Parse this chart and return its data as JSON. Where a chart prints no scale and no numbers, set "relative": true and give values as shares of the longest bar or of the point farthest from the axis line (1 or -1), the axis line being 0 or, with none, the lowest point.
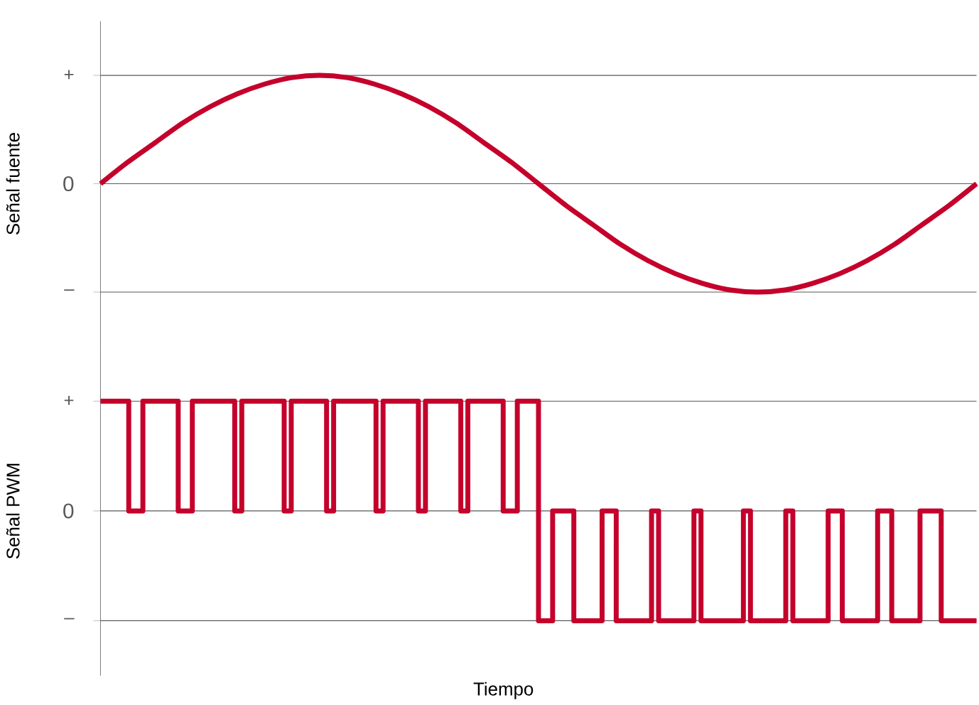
{
  "chart_data": [
    {
      "type": "line",
      "ylabel": "Señal fuente",
      "color": "#c4002b",
      "grid": "y",
      "relative": true,
      "annotations": [
        "+",
        "0",
        "–"
      ],
      "categories": [
        null,
        null,
        null,
        null,
        null,
        null,
        null,
        null,
        null,
        null,
        null,
        null,
        null,
        null,
        null,
        null,
        null,
        null,
        null,
        null,
        null,
        null,
        null,
        null,
        null,
        null,
        null,
        null,
        null,
        null,
        null,
        null,
        null
      ],
      "values": [
        0,
        0.2,
        0.38,
        0.56,
        0.71,
        0.83,
        0.92,
        0.98,
        1,
        0.98,
        0.92,
        0.83,
        0.71,
        0.56,
        0.38,
        0.2,
        0,
        -0.2,
        -0.38,
        -0.56,
        -0.71,
        -0.83,
        -0.92,
        -0.98,
        -1,
        -0.98,
        -0.92,
        -0.83,
        -0.71,
        -0.56,
        -0.38,
        -0.2,
        0
      ]
    },
    {
      "type": "step",
      "ylabel": "Señal PWM",
      "xlabel": "Tiempo",
      "color": "#c4002b",
      "grid": "y",
      "relative": true,
      "annotations": [
        "+",
        "0",
        "–"
      ],
      "categories": [
        null,
        null,
        null,
        null,
        null,
        null,
        null,
        null,
        null,
        null,
        null,
        null,
        null,
        null,
        null,
        null,
        null,
        null,
        null,
        null,
        null,
        null,
        null,
        null,
        null,
        null,
        null,
        null,
        null,
        null,
        null,
        null,
        null,
        null,
        null,
        null,
        null,
        null,
        null,
        null,
        null,
        null,
        null,
        null,
        null,
        null,
        null,
        null,
        null,
        null,
        null,
        null,
        null,
        null,
        null,
        null,
        null,
        null,
        null,
        null,
        null,
        null,
        null,
        null,
        null,
        null,
        null,
        null,
        null,
        null,
        null,
        null,
        null,
        null,
        null,
        null,
        null,
        null,
        null,
        null,
        null,
        null,
        null,
        null,
        null,
        null,
        null,
        null,
        null,
        null,
        null,
        null,
        null,
        null,
        null,
        null,
        null,
        null,
        null,
        null,
        null,
        null,
        null,
        null,
        null,
        null,
        null,
        null,
        null,
        null,
        null,
        null,
        null,
        null,
        null,
        null,
        null,
        null,
        null,
        null,
        null,
        null,
        null,
        null,
        null
      ],
      "values": [
        1,
        1,
        1,
        1,
        0,
        0,
        1,
        1,
        1,
        1,
        1,
        0,
        0,
        1,
        1,
        1,
        1,
        1,
        1,
        0,
        1,
        1,
        1,
        1,
        1,
        1,
        0,
        1,
        1,
        1,
        1,
        1,
        0,
        1,
        1,
        1,
        1,
        1,
        1,
        0,
        1,
        1,
        1,
        1,
        1,
        0,
        1,
        1,
        1,
        1,
        1,
        0,
        1,
        1,
        1,
        1,
        1,
        0,
        0,
        1,
        1,
        1,
        -1,
        -1,
        0,
        0,
        0,
        -1,
        -1,
        -1,
        -1,
        0,
        0,
        -1,
        -1,
        -1,
        -1,
        -1,
        0,
        -1,
        -1,
        -1,
        -1,
        -1,
        0,
        -1,
        -1,
        -1,
        -1,
        -1,
        -1,
        0,
        -1,
        -1,
        -1,
        -1,
        -1,
        0,
        -1,
        -1,
        -1,
        -1,
        -1,
        0,
        0,
        -1,
        -1,
        -1,
        -1,
        -1,
        0,
        0,
        -1,
        -1,
        -1,
        -1,
        0,
        0,
        0,
        -1,
        -1,
        -1,
        -1,
        -1,
        -1
      ]
    }
  ]
}
